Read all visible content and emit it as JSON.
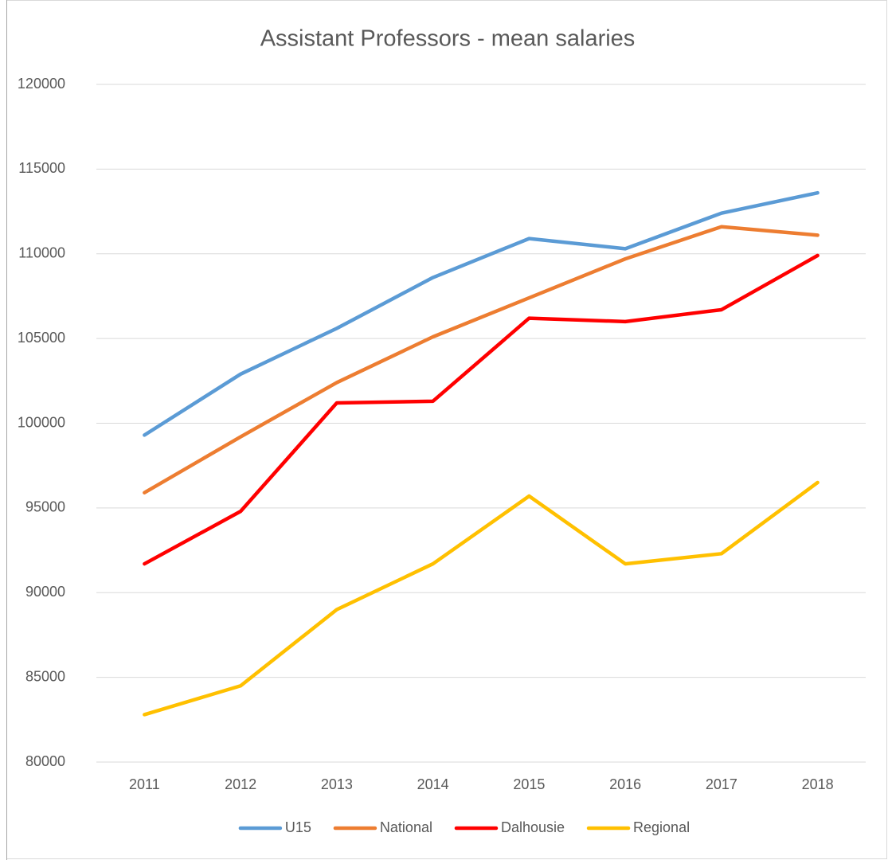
{
  "chart_data": {
    "type": "line",
    "title": "Assistant Professors - mean salaries",
    "categories": [
      "2011",
      "2012",
      "2013",
      "2014",
      "2015",
      "2016",
      "2017",
      "2018"
    ],
    "series": [
      {
        "name": "U15",
        "color": "#5b9bd5",
        "values": [
          99300,
          102900,
          105600,
          108600,
          110900,
          110300,
          112400,
          113600
        ]
      },
      {
        "name": "National",
        "color": "#ed7d31",
        "values": [
          95900,
          99200,
          102400,
          105100,
          107400,
          109700,
          111600,
          111100
        ]
      },
      {
        "name": "Dalhousie",
        "color": "#ff0000",
        "values": [
          91700,
          94800,
          101200,
          101300,
          106200,
          106000,
          106700,
          109900
        ]
      },
      {
        "name": "Regional",
        "color": "#ffc000",
        "values": [
          82800,
          84500,
          89000,
          91700,
          95700,
          91700,
          92300,
          96500
        ]
      }
    ],
    "ylim": [
      80000,
      120000
    ],
    "yticks": [
      80000,
      85000,
      90000,
      95000,
      100000,
      105000,
      110000,
      115000,
      120000
    ],
    "grid": true,
    "legend": "bottom"
  }
}
